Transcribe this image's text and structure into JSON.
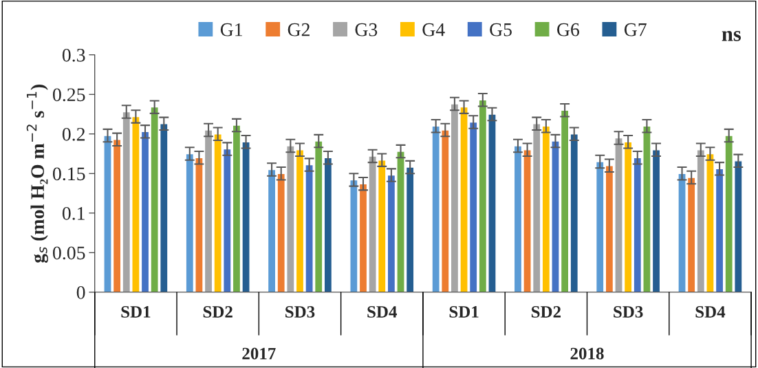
{
  "chart_data": {
    "type": "bar",
    "ylabel": "g$_{s}$ (mol H₂O m$^{−2}$ s$^{−1}$)",
    "categories": [
      "SD1",
      "SD2",
      "SD3",
      "SD4",
      "SD1",
      "SD2",
      "SD3",
      "SD4"
    ],
    "series": [
      {
        "name": "G1",
        "color": "#5b9bd5",
        "values": [
          0.198,
          0.175,
          0.155,
          0.142,
          0.21,
          0.185,
          0.165,
          0.15
        ],
        "errors": [
          0.008,
          0.008,
          0.008,
          0.008,
          0.008,
          0.008,
          0.008,
          0.008
        ]
      },
      {
        "name": "G2",
        "color": "#ed7d31",
        "values": [
          0.193,
          0.17,
          0.15,
          0.137,
          0.205,
          0.18,
          0.16,
          0.145
        ],
        "errors": [
          0.008,
          0.008,
          0.008,
          0.008,
          0.008,
          0.008,
          0.008,
          0.008
        ]
      },
      {
        "name": "G3",
        "color": "#a5a5a5",
        "values": [
          0.228,
          0.205,
          0.185,
          0.172,
          0.238,
          0.213,
          0.195,
          0.18
        ],
        "errors": [
          0.008,
          0.008,
          0.008,
          0.008,
          0.008,
          0.008,
          0.008,
          0.008
        ]
      },
      {
        "name": "G4",
        "color": "#ffc000",
        "values": [
          0.222,
          0.2,
          0.18,
          0.167,
          0.234,
          0.21,
          0.19,
          0.175
        ],
        "errors": [
          0.008,
          0.008,
          0.008,
          0.008,
          0.008,
          0.008,
          0.008,
          0.008
        ]
      },
      {
        "name": "G5",
        "color": "#4472c4",
        "values": [
          0.203,
          0.181,
          0.161,
          0.148,
          0.215,
          0.191,
          0.17,
          0.156
        ],
        "errors": [
          0.008,
          0.008,
          0.008,
          0.008,
          0.008,
          0.008,
          0.008,
          0.008
        ]
      },
      {
        "name": "G6",
        "color": "#70ad47",
        "values": [
          0.234,
          0.211,
          0.191,
          0.178,
          0.243,
          0.23,
          0.21,
          0.198
        ],
        "errors": [
          0.008,
          0.008,
          0.008,
          0.008,
          0.008,
          0.008,
          0.008,
          0.008
        ]
      },
      {
        "name": "G7",
        "color": "#255e91",
        "values": [
          0.213,
          0.19,
          0.17,
          0.158,
          0.225,
          0.2,
          0.18,
          0.166
        ],
        "errors": [
          0.008,
          0.008,
          0.008,
          0.008,
          0.008,
          0.008,
          0.008,
          0.008
        ]
      }
    ],
    "ylim": [
      0,
      0.3
    ],
    "yticks": [
      0,
      0.05,
      0.1,
      0.15,
      0.2,
      0.25,
      0.3
    ],
    "grid": false,
    "legend": "top",
    "annotations": [
      "ns",
      "2017",
      "2018"
    ]
  }
}
